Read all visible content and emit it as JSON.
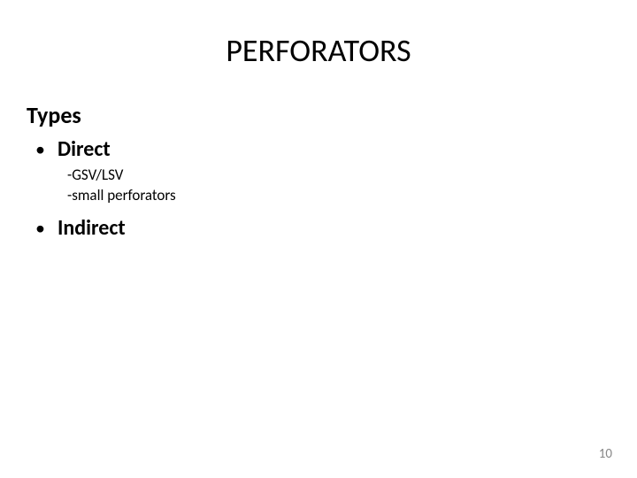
{
  "slide": {
    "title": "PERFORATORS",
    "subtitle": "Types",
    "bullets": [
      {
        "label": "Direct",
        "subitems": [
          " -GSV/LSV",
          "-small perforators"
        ]
      },
      {
        "label": "Indirect",
        "subitems": []
      }
    ],
    "pageNumber": "10"
  },
  "style": {
    "background_color": "#ffffff",
    "title_fontsize": 36,
    "title_color": "#000000",
    "subtitle_fontsize": 26,
    "subtitle_weight": "bold",
    "bullet_text_fontsize": 24,
    "bullet_text_weight": "bold",
    "subitem_fontsize": 17,
    "page_number_color": "#888888",
    "page_number_fontsize": 15,
    "font_family": "Calibri, Arial, sans-serif"
  }
}
